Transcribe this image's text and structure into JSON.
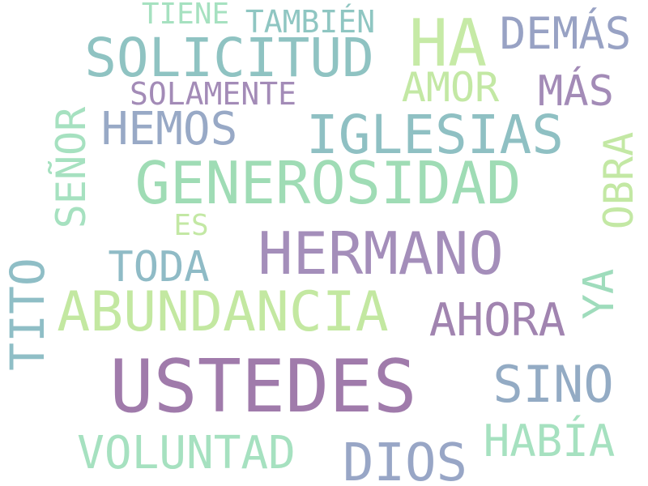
{
  "words": [
    {
      "text": "USTEDES",
      "color": "#a07bab",
      "orientation": "horizontal"
    },
    {
      "text": "GENEROSIDAD",
      "color": "#9fdcb5",
      "orientation": "horizontal"
    },
    {
      "text": "HERMANO",
      "color": "#a48eba",
      "orientation": "horizontal"
    },
    {
      "text": "ABUNDANCIA",
      "color": "#c3e8a1",
      "orientation": "horizontal"
    },
    {
      "text": "SOLICITUD",
      "color": "#8fc3c2",
      "orientation": "horizontal"
    },
    {
      "text": "IGLESIAS",
      "color": "#8fc0c3",
      "orientation": "horizontal"
    },
    {
      "text": "HA",
      "color": "#c6eaa6",
      "orientation": "horizontal"
    },
    {
      "text": "DIOS",
      "color": "#98a6c6",
      "orientation": "horizontal"
    },
    {
      "text": "VOLUNTAD",
      "color": "#a6e1c0",
      "orientation": "horizontal"
    },
    {
      "text": "SINO",
      "color": "#93abc4",
      "orientation": "horizontal"
    },
    {
      "text": "HEMOS",
      "color": "#98a9c6",
      "orientation": "horizontal"
    },
    {
      "text": "AHORA",
      "color": "#a184b0",
      "orientation": "horizontal"
    },
    {
      "text": "HABÍA",
      "color": "#a6e1c0",
      "orientation": "horizontal"
    },
    {
      "text": "DEMÁS",
      "color": "#98a2c4",
      "orientation": "horizontal"
    },
    {
      "text": "TODA",
      "color": "#8fbbc6",
      "orientation": "horizontal"
    },
    {
      "text": "AMOR",
      "color": "#c3e8a4",
      "orientation": "horizontal"
    },
    {
      "text": "MÁS",
      "color": "#a38bb7",
      "orientation": "horizontal"
    },
    {
      "text": "TITO",
      "color": "#8fbec6",
      "orientation": "vertical"
    },
    {
      "text": "SEÑOR",
      "color": "#a6e1c0",
      "orientation": "vertical"
    },
    {
      "text": "OBRA",
      "color": "#c3e8a4",
      "orientation": "vertical"
    },
    {
      "text": "YA",
      "color": "#9fdcbc",
      "orientation": "vertical"
    },
    {
      "text": "SOLAMENTE",
      "color": "#a38bb7",
      "orientation": "horizontal"
    },
    {
      "text": "TAMBIÉN",
      "color": "#8fc6c2",
      "orientation": "horizontal"
    },
    {
      "text": "TIENE",
      "color": "#a6e1c0",
      "orientation": "horizontal"
    },
    {
      "text": "ES",
      "color": "#c3e8a4",
      "orientation": "horizontal"
    }
  ]
}
